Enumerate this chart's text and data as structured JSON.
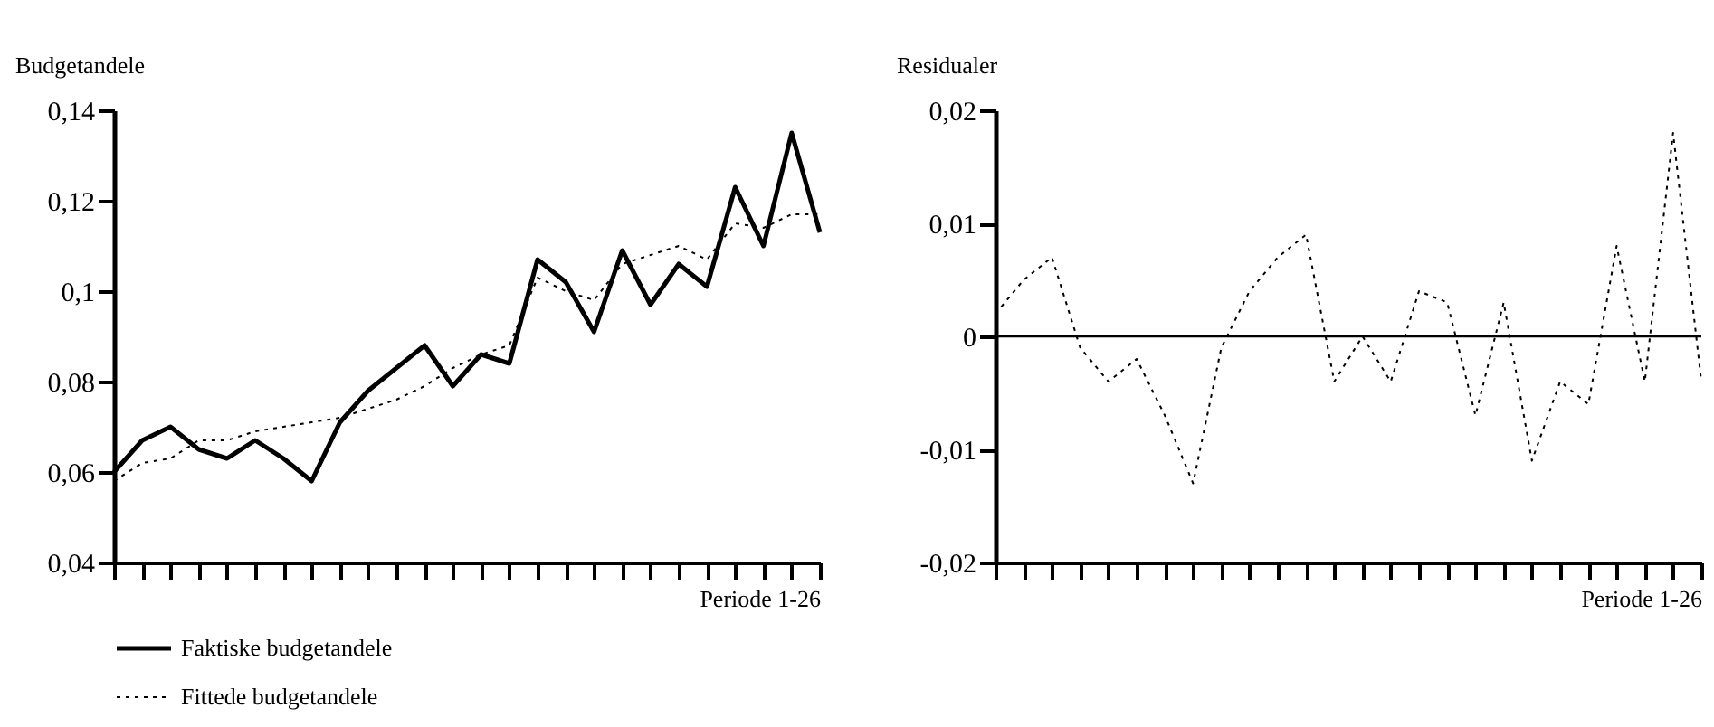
{
  "chart_data": [
    {
      "type": "line",
      "ylabel": "Budgetandele",
      "xlabel": "Periode 1-26",
      "categories": [
        null,
        null,
        null,
        null,
        null,
        null,
        null,
        null,
        null,
        null,
        null,
        null,
        null,
        null,
        null,
        null,
        null,
        null,
        null,
        null,
        null,
        null,
        null,
        null,
        null,
        null
      ],
      "series": [
        {
          "name": "Faktiske budgetandele",
          "color": "#000000",
          "line_style": "solid",
          "values": [
            0.06,
            0.067,
            0.07,
            0.065,
            0.063,
            0.067,
            0.063,
            0.058,
            0.071,
            0.078,
            0.083,
            0.088,
            0.079,
            0.086,
            0.084,
            0.107,
            0.102,
            0.091,
            0.109,
            0.097,
            0.106,
            0.101,
            0.123,
            0.11,
            0.135,
            0.113
          ]
        },
        {
          "name": "Fittede budgetandele",
          "color": "#000000",
          "line_style": "dotted",
          "values": [
            0.058,
            0.062,
            0.063,
            0.067,
            0.067,
            0.069,
            0.07,
            0.071,
            0.072,
            0.074,
            0.076,
            0.079,
            0.083,
            0.086,
            0.088,
            0.103,
            0.1,
            0.098,
            0.106,
            0.108,
            0.11,
            0.107,
            0.115,
            0.114,
            0.117,
            0.117
          ]
        }
      ],
      "ylim": [
        0.04,
        0.14
      ],
      "yticks": [
        {
          "value": 0.04,
          "label": "0,04"
        },
        {
          "value": 0.06,
          "label": "0,06"
        },
        {
          "value": 0.08,
          "label": "0,08"
        },
        {
          "value": 0.1,
          "label": "0,1"
        },
        {
          "value": 0.12,
          "label": "0,12"
        },
        {
          "value": 0.14,
          "label": "0,14"
        }
      ],
      "tick_labels": "y",
      "grid": false,
      "marker": "none",
      "legend": "bottom"
    },
    {
      "type": "line",
      "ylabel": "Residualer",
      "xlabel": "Periode 1-26",
      "categories": [
        null,
        null,
        null,
        null,
        null,
        null,
        null,
        null,
        null,
        null,
        null,
        null,
        null,
        null,
        null,
        null,
        null,
        null,
        null,
        null,
        null,
        null,
        null,
        null,
        null,
        null
      ],
      "series": [
        {
          "color": "#000000",
          "line_style": "dotted",
          "values": [
            0.002,
            0.005,
            0.007,
            -0.001,
            -0.004,
            -0.002,
            -0.007,
            -0.013,
            -0.001,
            0.004,
            0.007,
            0.009,
            -0.004,
            0,
            -0.004,
            0.004,
            0.003,
            -0.007,
            0.003,
            -0.011,
            -0.004,
            -0.006,
            0.008,
            -0.004,
            0.018,
            -0.004
          ]
        }
      ],
      "ylim": [
        -0.02,
        0.02
      ],
      "yticks": [
        {
          "value": -0.02,
          "label": "-0,02"
        },
        {
          "value": -0.01,
          "label": "-0,01"
        },
        {
          "value": 0,
          "label": "0"
        },
        {
          "value": 0.01,
          "label": "0,01"
        },
        {
          "value": 0.02,
          "label": "0,02"
        }
      ],
      "ref_lines": [
        {
          "axis": "y",
          "value": 0,
          "color": "#000000"
        }
      ],
      "tick_labels": "y",
      "grid": false,
      "marker": "none"
    }
  ]
}
